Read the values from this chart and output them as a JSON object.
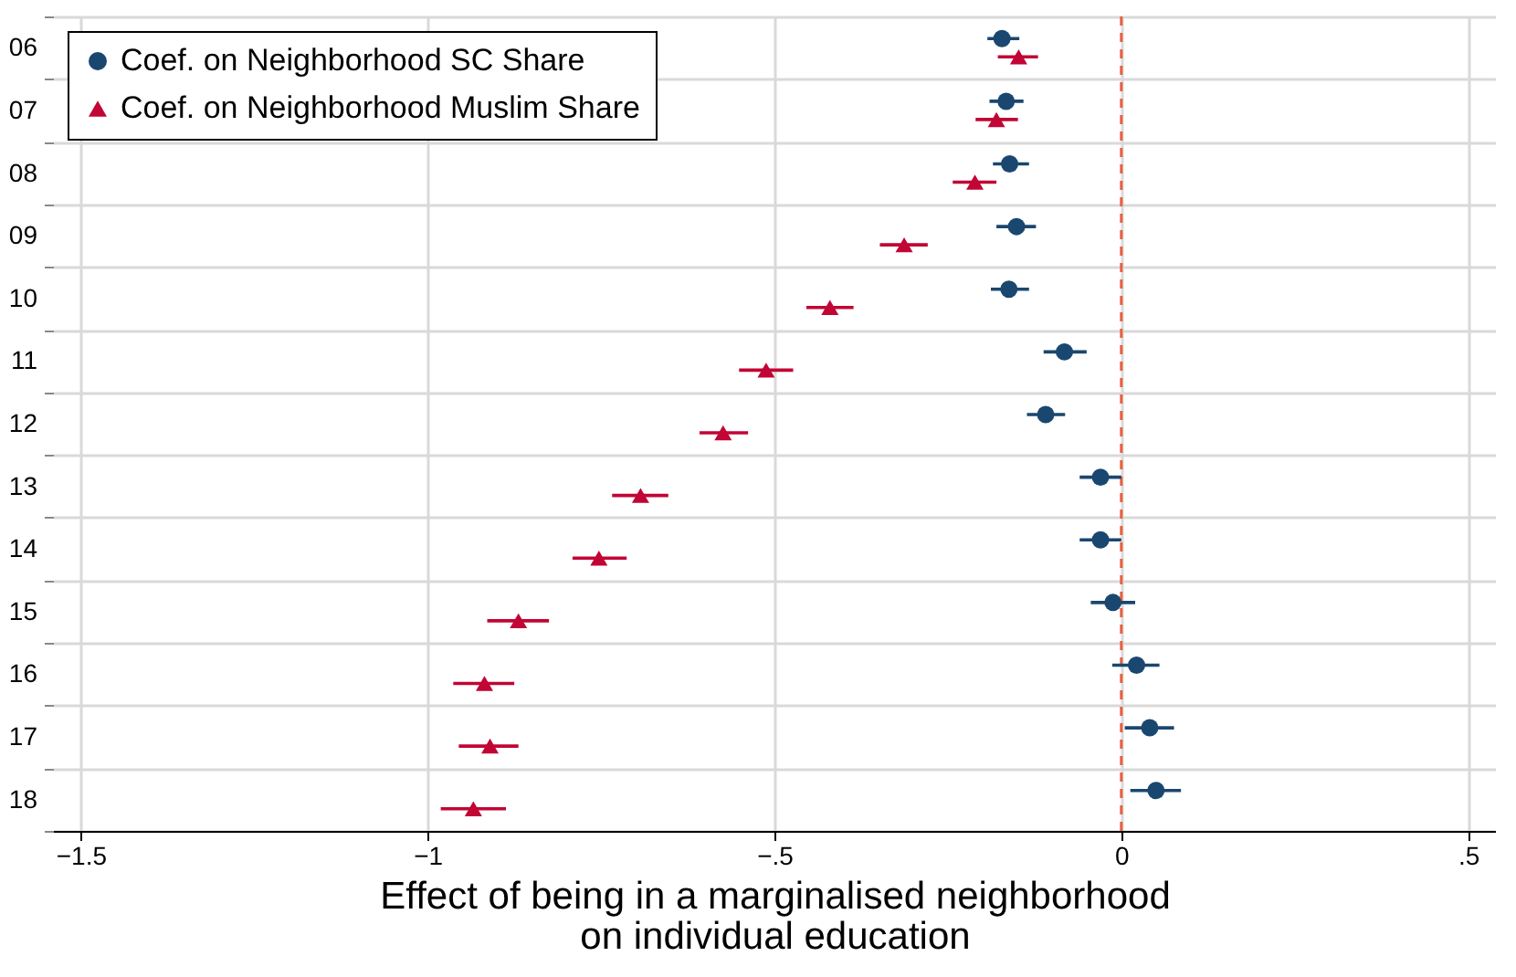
{
  "chart_data": {
    "type": "scatter",
    "orientation": "horizontal",
    "xlabel": "Effect of being in a marginalised neighborhood\non individual education",
    "categories": [
      "06",
      "07",
      "08",
      "09",
      "10",
      "11",
      "12",
      "13",
      "14",
      "15",
      "16",
      "17",
      "18"
    ],
    "xlim": [
      -1.54,
      0.54
    ],
    "xticks": [
      {
        "value": -1.5,
        "label": "−1.5"
      },
      {
        "value": -1,
        "label": "−1"
      },
      {
        "value": -0.5,
        "label": "−.5"
      },
      {
        "value": 0,
        "label": "0"
      },
      {
        "value": 0.5,
        "label": ".5"
      }
    ],
    "grid": true,
    "legend": "top left",
    "ref_lines": [
      {
        "axis": "x",
        "value": 0,
        "color": "#e8603c",
        "line_style": "dashed"
      }
    ],
    "series": [
      {
        "name": "Coef. on Neighborhood SC Share",
        "color": "#1a476f",
        "marker": "circle",
        "values": [
          -0.172,
          -0.166,
          -0.161,
          -0.151,
          -0.162,
          -0.082,
          -0.109,
          -0.03,
          -0.03,
          -0.012,
          0.022,
          0.041,
          0.05
        ],
        "errors": [
          [
            -0.193,
            -0.147
          ],
          [
            -0.19,
            -0.141
          ],
          [
            -0.185,
            -0.133
          ],
          [
            -0.18,
            -0.123
          ],
          [
            -0.188,
            -0.133
          ],
          [
            -0.112,
            -0.05
          ],
          [
            -0.136,
            -0.081
          ],
          [
            -0.06,
            0.0
          ],
          [
            -0.06,
            0.0
          ],
          [
            -0.044,
            0.02
          ],
          [
            -0.013,
            0.055
          ],
          [
            0.005,
            0.076
          ],
          [
            0.013,
            0.086
          ]
        ]
      },
      {
        "name": "Coef. on Neighborhood Muslim Share",
        "color": "#c10534",
        "marker": "triangle",
        "values": [
          -0.148,
          -0.18,
          -0.211,
          -0.313,
          -0.42,
          -0.512,
          -0.574,
          -0.693,
          -0.753,
          -0.869,
          -0.918,
          -0.91,
          -0.934
        ],
        "errors": [
          [
            -0.178,
            -0.12
          ],
          [
            -0.21,
            -0.149
          ],
          [
            -0.243,
            -0.18
          ],
          [
            -0.348,
            -0.279
          ],
          [
            -0.454,
            -0.386
          ],
          [
            -0.551,
            -0.473
          ],
          [
            -0.608,
            -0.538
          ],
          [
            -0.734,
            -0.653
          ],
          [
            -0.791,
            -0.713
          ],
          [
            -0.914,
            -0.825
          ],
          [
            -0.963,
            -0.875
          ],
          [
            -0.955,
            -0.869
          ],
          [
            -0.981,
            -0.887
          ]
        ]
      }
    ]
  }
}
